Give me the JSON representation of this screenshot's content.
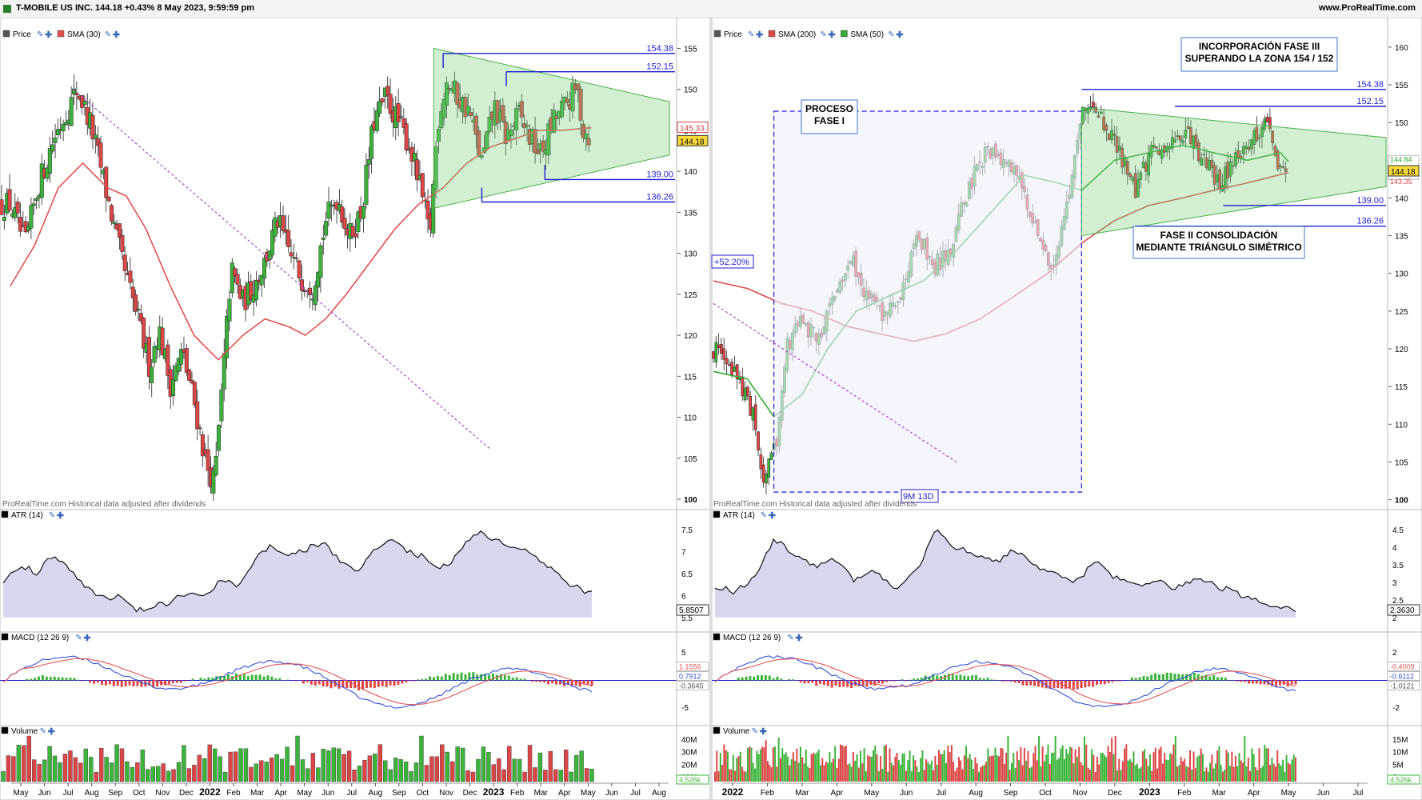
{
  "header": {
    "title": "T-MOBILE US INC. 144.18 +0.43% 8 May 2023, 9:59:59 pm",
    "site": "www.ProRealTime.com"
  },
  "colors": {
    "up": "#3cb43c",
    "down": "#dc4646",
    "sma30": "#e05050",
    "sma200": "#d84a4a",
    "sma50": "#34a834",
    "boxes": "#1c1cd0",
    "triangle": "#7fd07f",
    "atr_fill": "#c9c9ea"
  },
  "common": {
    "watermark": "ProRealTime.com  Historical data adjusted after dividends",
    "price_label": "Price",
    "atr_label": "ATR (14)",
    "macd_label": "MACD (12 26 9)",
    "volume_label": "Volume"
  },
  "chart_data": [
    {
      "type": "candlestick",
      "panel": "left",
      "indicator_label": "SMA (30)",
      "ylim": [
        100,
        157
      ],
      "y_ticks": [
        100,
        105,
        110,
        115,
        120,
        125,
        130,
        135,
        140,
        145,
        150,
        155
      ],
      "x_ticks": [
        "May",
        "Jun",
        "Jul",
        "Aug",
        "Sep",
        "Oct",
        "Nov",
        "Dec",
        "2022",
        "Feb",
        "Mar",
        "Apr",
        "May",
        "Jun",
        "Jul",
        "Aug",
        "Sep",
        "Oct",
        "Nov",
        "Dec",
        "2023",
        "Feb",
        "Mar",
        "Apr",
        "May",
        "Jun",
        "Jul",
        "Aug"
      ],
      "date_range": [
        "2021-05",
        "2023-08"
      ],
      "close_path": [
        [
          "2021-05-01",
          136
        ],
        [
          "2021-05-20",
          131
        ],
        [
          "2021-06-05",
          138
        ],
        [
          "2021-06-25",
          144
        ],
        [
          "2021-07-15",
          148
        ],
        [
          "2021-07-25",
          150
        ],
        [
          "2021-08-10",
          146
        ],
        [
          "2021-08-25",
          140
        ],
        [
          "2021-09-10",
          133
        ],
        [
          "2021-09-25",
          127
        ],
        [
          "2021-10-10",
          122
        ],
        [
          "2021-10-25",
          116
        ],
        [
          "2021-11-05",
          121
        ],
        [
          "2021-11-20",
          114
        ],
        [
          "2021-12-05",
          118
        ],
        [
          "2021-12-20",
          112
        ],
        [
          "2022-01-05",
          104
        ],
        [
          "2022-01-15",
          102
        ],
        [
          "2022-01-25",
          114
        ],
        [
          "2022-02-05",
          128
        ],
        [
          "2022-02-20",
          124
        ],
        [
          "2022-03-05",
          126
        ],
        [
          "2022-03-20",
          129
        ],
        [
          "2022-04-05",
          134
        ],
        [
          "2022-04-20",
          130
        ],
        [
          "2022-05-05",
          127
        ],
        [
          "2022-05-20",
          126
        ],
        [
          "2022-06-05",
          134
        ],
        [
          "2022-06-20",
          137
        ],
        [
          "2022-07-05",
          132
        ],
        [
          "2022-07-20",
          135
        ],
        [
          "2022-08-05",
          146
        ],
        [
          "2022-08-20",
          149
        ],
        [
          "2022-09-05",
          146
        ],
        [
          "2022-09-20",
          143
        ],
        [
          "2022-10-05",
          137
        ],
        [
          "2022-10-15",
          132
        ],
        [
          "2022-10-25",
          146
        ],
        [
          "2022-11-05",
          151
        ],
        [
          "2022-11-20",
          149
        ],
        [
          "2022-12-05",
          147
        ],
        [
          "2022-12-20",
          141
        ],
        [
          "2023-01-05",
          148
        ],
        [
          "2023-01-20",
          144
        ],
        [
          "2023-02-05",
          147
        ],
        [
          "2023-02-20",
          144
        ],
        [
          "2023-03-05",
          142
        ],
        [
          "2023-03-20",
          146
        ],
        [
          "2023-04-05",
          148
        ],
        [
          "2023-04-20",
          150
        ],
        [
          "2023-04-28",
          145
        ],
        [
          "2023-05-08",
          144.18
        ]
      ],
      "sma": [
        [
          "2021-05-01",
          126
        ],
        [
          "2021-06-01",
          131
        ],
        [
          "2021-07-01",
          138
        ],
        [
          "2021-08-01",
          141
        ],
        [
          "2021-09-01",
          138
        ],
        [
          "2021-09-25",
          137
        ],
        [
          "2021-10-20",
          133
        ],
        [
          "2021-11-20",
          126
        ],
        [
          "2021-12-20",
          120
        ],
        [
          "2022-01-20",
          117
        ],
        [
          "2022-02-20",
          120
        ],
        [
          "2022-03-20",
          122
        ],
        [
          "2022-04-20",
          121
        ],
        [
          "2022-05-10",
          120
        ],
        [
          "2022-06-05",
          122
        ],
        [
          "2022-07-01",
          125
        ],
        [
          "2022-08-01",
          129
        ],
        [
          "2022-09-01",
          133
        ],
        [
          "2022-10-01",
          136
        ],
        [
          "2022-11-01",
          138
        ],
        [
          "2022-12-01",
          141
        ],
        [
          "2023-01-01",
          143
        ],
        [
          "2023-02-01",
          144
        ],
        [
          "2023-03-01",
          145
        ],
        [
          "2023-04-01",
          145
        ],
        [
          "2023-05-08",
          145.33
        ]
      ],
      "current_price": "144.18",
      "sma_value": "145.33",
      "horizontal_levels": [
        "154.38",
        "152.15",
        "139.00",
        "136.26"
      ],
      "triangle": {
        "apex_top": [
          "2022-10-25",
          155
        ],
        "base_bottom": [
          "2022-10-25",
          136
        ],
        "to": [
          "2023-08-10",
          148,
          142
        ]
      },
      "trend_line": {
        "from": [
          "2021-07-20",
          150
        ],
        "to": [
          "2023-01-01",
          106
        ]
      },
      "atr": {
        "ylim": [
          5,
          8
        ],
        "ticks": [
          "7.5",
          "7",
          "6.5",
          "6",
          "5.5"
        ],
        "last": "5.8507",
        "values": [
          6.2,
          6.6,
          6.4,
          6.9,
          6.5,
          6.0,
          5.7,
          5.8,
          5.4,
          5.5,
          5.6,
          5.9,
          5.8,
          6.2,
          6.0,
          6.8,
          7.1,
          6.9,
          7.0,
          7.2,
          6.7,
          6.4,
          7.0,
          7.3,
          7.0,
          6.8,
          6.5,
          6.8,
          7.5,
          7.3,
          7.1,
          7.0,
          6.7,
          6.3,
          6.0,
          5.85
        ]
      },
      "macd": {
        "ylim": [
          -7,
          7
        ],
        "ticks": [
          "5",
          "0",
          "-5"
        ],
        "values_right": [
          "1.1556",
          "0.7912",
          "-0.3645"
        ]
      },
      "volume": {
        "ticks": [
          "40M",
          "30M",
          "20M",
          "10M"
        ],
        "last": "4,526k"
      }
    },
    {
      "type": "candlestick",
      "panel": "right",
      "indicator_labels": [
        "SMA (200)",
        "SMA (50)"
      ],
      "ylim": [
        99,
        162
      ],
      "y_ticks": [
        100,
        105,
        110,
        115,
        120,
        125,
        130,
        135,
        140,
        145,
        150,
        155,
        160
      ],
      "x_ticks": [
        "2022",
        "Feb",
        "Mar",
        "Apr",
        "May",
        "Jun",
        "Jul",
        "Aug",
        "Sep",
        "Oct",
        "Nov",
        "Dec",
        "2023",
        "Feb",
        "Mar",
        "Apr",
        "May",
        "Jun",
        "Jul"
      ],
      "current_price": "144.18",
      "sma_values": [
        "144.84",
        "143.35"
      ],
      "horizontal_levels": [
        "154.38",
        "152.15",
        "139.00",
        "136.26"
      ],
      "annotations": {
        "phase1": "PROCESO\nFASE I",
        "phase2": "FASE II CONSOLIDACIÓN\nMEDIANTE TRIÁNGULO SIMÉTRICO",
        "phase3": "INCORPORACIÓN FASE III\nSUPERANDO LA ZONA 154 / 152",
        "gain": "+52.20%",
        "duration": "9M 13D"
      },
      "atr": {
        "ticks": [
          "4.5",
          "4",
          "3.5",
          "3",
          "2.5",
          "2"
        ],
        "last": "2.3630"
      },
      "macd": {
        "ticks": [
          "2",
          "0",
          "-2"
        ],
        "values_right": [
          "-0.4009",
          "-0.6112",
          "-1.0121"
        ]
      },
      "volume": {
        "ticks": [
          "15M",
          "10M",
          "5M",
          "0"
        ],
        "last": "4,526k"
      }
    }
  ]
}
